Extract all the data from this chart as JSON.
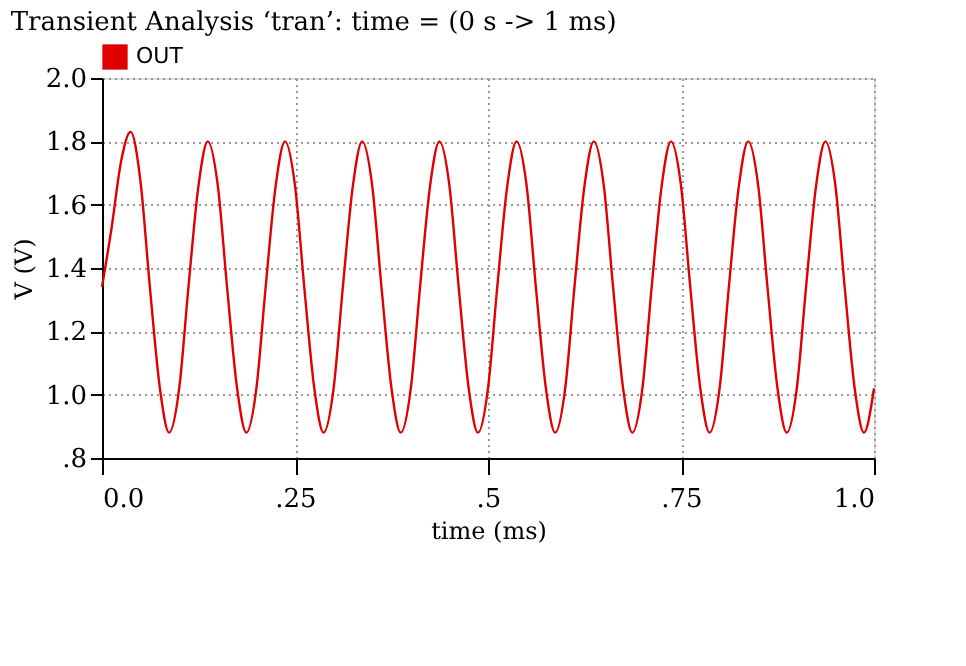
{
  "chart_data": {
    "type": "line",
    "title": "Transient Analysis ‘tran’: time = (0 s -> 1 ms)",
    "xlabel": "time (ms)",
    "ylabel": "V (V)",
    "series": [
      {
        "name": "OUT",
        "color": "#e00000",
        "x": [
          0,
          0.012,
          0.025,
          0.037,
          0.05,
          0.062,
          0.075,
          0.087,
          0.1,
          0.112,
          0.125,
          0.137,
          0.15,
          0.162,
          0.175,
          0.187,
          0.2,
          0.212,
          0.225,
          0.237,
          0.25,
          0.262,
          0.275,
          0.287,
          0.3,
          0.312,
          0.325,
          0.337,
          0.35,
          0.362,
          0.375,
          0.387,
          0.4,
          0.412,
          0.425,
          0.437,
          0.45,
          0.462,
          0.475,
          0.487,
          0.5,
          0.512,
          0.525,
          0.537,
          0.55,
          0.562,
          0.575,
          0.587,
          0.6,
          0.612,
          0.625,
          0.637,
          0.65,
          0.662,
          0.675,
          0.687,
          0.7,
          0.712,
          0.725,
          0.737,
          0.75,
          0.762,
          0.775,
          0.787,
          0.8,
          0.812,
          0.825,
          0.837,
          0.85,
          0.862,
          0.875,
          0.887,
          0.9,
          0.912,
          0.925,
          0.937,
          0.95,
          0.962,
          0.975,
          0.987,
          1.0
        ],
        "values": [
          1.34,
          1.52,
          1.74,
          1.83,
          1.67,
          1.34,
          1.02,
          0.88,
          1.02,
          1.34,
          1.66,
          1.8,
          1.66,
          1.34,
          1.02,
          0.88,
          1.02,
          1.34,
          1.66,
          1.8,
          1.66,
          1.34,
          1.02,
          0.88,
          1.02,
          1.34,
          1.66,
          1.8,
          1.66,
          1.34,
          1.02,
          0.88,
          1.02,
          1.34,
          1.66,
          1.8,
          1.66,
          1.34,
          1.02,
          0.88,
          1.02,
          1.34,
          1.66,
          1.8,
          1.66,
          1.34,
          1.02,
          0.88,
          1.02,
          1.34,
          1.66,
          1.8,
          1.66,
          1.34,
          1.02,
          0.88,
          1.02,
          1.34,
          1.66,
          1.8,
          1.66,
          1.34,
          1.02,
          0.88,
          1.02,
          1.34,
          1.66,
          1.8,
          1.66,
          1.34,
          1.02,
          0.88,
          1.02,
          1.34,
          1.66,
          1.8,
          1.66,
          1.34,
          1.02,
          0.88,
          1.02
        ]
      }
    ],
    "xlim": [
      0,
      1.0
    ],
    "xticks": [
      {
        "value": 0,
        "label": "0.0"
      },
      {
        "value": 0.25,
        "label": ".25"
      },
      {
        "value": 0.5,
        "label": ".5"
      },
      {
        "value": 0.75,
        "label": ".75"
      },
      {
        "value": 1.0,
        "label": "1.0"
      }
    ],
    "ylim": [
      0.8,
      2.0
    ],
    "yticks": [
      {
        "value": 0.8,
        "label": ".8"
      },
      {
        "value": 1.0,
        "label": "1.0"
      },
      {
        "value": 1.2,
        "label": "1.2"
      },
      {
        "value": 1.4,
        "label": "1.4"
      },
      {
        "value": 1.6,
        "label": "1.6"
      },
      {
        "value": 1.8,
        "label": "1.8"
      },
      {
        "value": 2.0,
        "label": "2.0"
      }
    ],
    "grid": true,
    "legend": "top left",
    "marker": "none",
    "line_style": "solid"
  }
}
